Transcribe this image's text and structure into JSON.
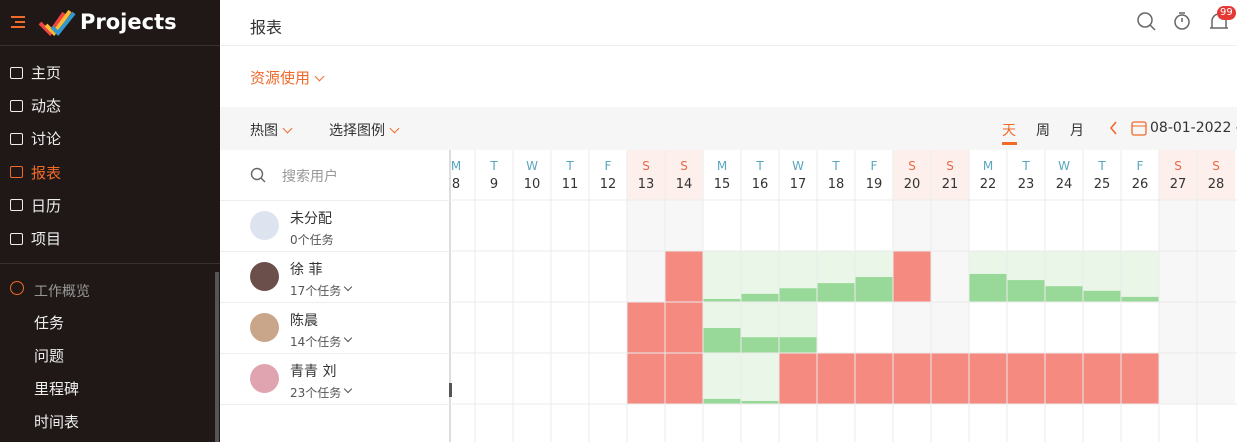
{
  "sidebar": {
    "brand": "Projects",
    "nav": [
      "主页",
      "动态",
      "讨论",
      "报表",
      "日历",
      "项目"
    ],
    "active": 3,
    "section": "工作概览",
    "sub": [
      "任务",
      "问题",
      "里程碑",
      "时间表"
    ]
  },
  "header": {
    "title": "报表",
    "badge": "99"
  },
  "report": {
    "selector": "资源使用"
  },
  "toolbar": {
    "view": "热图",
    "legend": "选择图例",
    "scales": [
      "天",
      "周",
      "月"
    ],
    "active_scale": 0,
    "date": "08-01-2022 -"
  },
  "grid": {
    "search_placeholder": "搜索用户",
    "days": [
      {
        "weekday": "M",
        "date": "8"
      },
      {
        "weekday": "T",
        "date": "9"
      },
      {
        "weekday": "W",
        "date": "10"
      },
      {
        "weekday": "T",
        "date": "11"
      },
      {
        "weekday": "F",
        "date": "12"
      },
      {
        "weekday": "S",
        "date": "13"
      },
      {
        "weekday": "S",
        "date": "14"
      },
      {
        "weekday": "M",
        "date": "15"
      },
      {
        "weekday": "T",
        "date": "16"
      },
      {
        "weekday": "W",
        "date": "17"
      },
      {
        "weekday": "T",
        "date": "18"
      },
      {
        "weekday": "F",
        "date": "19"
      },
      {
        "weekday": "S",
        "date": "20"
      },
      {
        "weekday": "S",
        "date": "21"
      },
      {
        "weekday": "M",
        "date": "22"
      },
      {
        "weekday": "T",
        "date": "23"
      },
      {
        "weekday": "W",
        "date": "24"
      },
      {
        "weekday": "T",
        "date": "25"
      },
      {
        "weekday": "F",
        "date": "26"
      },
      {
        "weekday": "S",
        "date": "27"
      },
      {
        "weekday": "S",
        "date": "28"
      }
    ],
    "users": [
      {
        "name": "未分配",
        "tasks": "0个任务",
        "heatmap": [
          null,
          null,
          null,
          null,
          null,
          null,
          null,
          null,
          null,
          null,
          null,
          null,
          null,
          null,
          null,
          null,
          null,
          null,
          null,
          null,
          null
        ]
      },
      {
        "name": "徐 菲",
        "tasks": "17个任务",
        "heatmap": [
          null,
          null,
          null,
          null,
          null,
          null,
          "over",
          6,
          16,
          27,
          37,
          49,
          "over",
          null,
          55,
          43,
          31,
          22,
          10,
          null,
          null
        ]
      },
      {
        "name": "陈晨",
        "tasks": "14个任务",
        "heatmap": [
          null,
          null,
          null,
          null,
          null,
          "over",
          "over",
          49,
          31,
          31,
          null,
          null,
          null,
          null,
          null,
          null,
          null,
          null,
          null,
          null,
          null
        ]
      },
      {
        "name": "青青 刘",
        "tasks": "23个任务",
        "heatmap": [
          null,
          null,
          null,
          null,
          null,
          "over",
          "over",
          10,
          6,
          "over",
          "over",
          "over",
          "over",
          "over",
          "over",
          "over",
          "over",
          "over",
          "over",
          null,
          null
        ]
      }
    ]
  }
}
